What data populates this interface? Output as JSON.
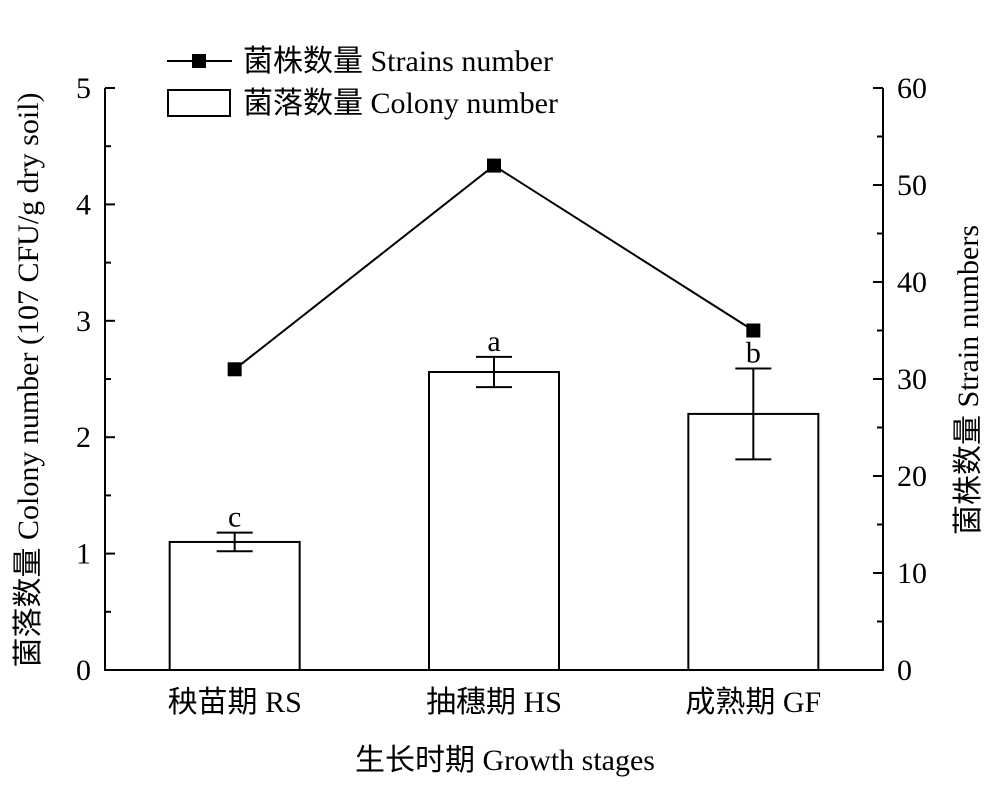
{
  "chart_data": {
    "type": "bar",
    "categories": [
      "秧苗期 RS",
      "抽穗期 HS",
      "成熟期 GF"
    ],
    "xlabel": "生长时期 Growth stages",
    "ylabel_left": "菌落数量 Colony number (107 CFU/g dry soil)",
    "ylabel_right": "菌株数量 Strain numbers",
    "y_left": {
      "lim": [
        0,
        5
      ],
      "ticks": [
        "0",
        "1",
        "2",
        "3",
        "4",
        "5"
      ]
    },
    "y_right": {
      "lim": [
        0,
        60
      ],
      "ticks": [
        "0",
        "10",
        "20",
        "30",
        "40",
        "50",
        "60"
      ]
    },
    "series": [
      {
        "name": "菌落数量 Colony number",
        "kind": "bar",
        "axis": "left",
        "values": [
          1.1,
          2.56,
          2.2
        ],
        "errors": [
          0.08,
          0.13,
          0.39
        ],
        "significance": [
          "c",
          "a",
          "b"
        ]
      },
      {
        "name": "菌株数量 Strains number",
        "kind": "line",
        "axis": "right",
        "marker": "square",
        "values": [
          31,
          52,
          35
        ]
      }
    ],
    "legend_position": "top-left",
    "grid": false
  }
}
